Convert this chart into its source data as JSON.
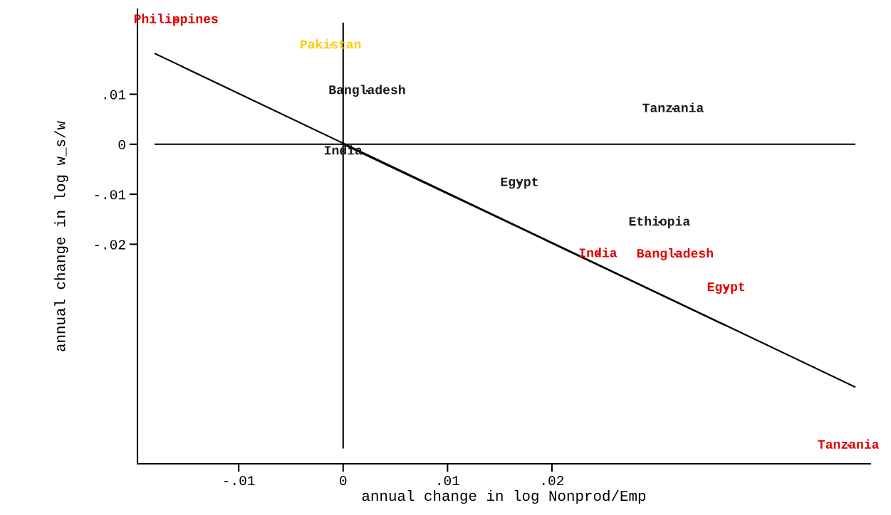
{
  "chart_data": {
    "type": "scatter",
    "xlabel": "annual change in log Nonprod/Emp",
    "ylabel": "annual change in log w_s/w",
    "xlim": [
      -0.0197,
      0.0505
    ],
    "ylim": [
      -0.0639,
      0.027
    ],
    "xticks": [
      {
        "value": -0.01,
        "label": "-.01"
      },
      0,
      {
        "value": 0.01,
        "label": ".01"
      },
      {
        "value": 0.02,
        "label": ".02"
      }
    ],
    "yticks": [
      {
        "value": 0.01,
        "label": ".01"
      },
      0,
      {
        "value": -0.01,
        "label": "-.01"
      },
      {
        "value": -0.02,
        "label": "-.02"
      }
    ],
    "grid": false,
    "legend": false,
    "series": [
      {
        "marker": "circle",
        "color": "#1a1a1a",
        "x": [
          0.0023,
          0.0316,
          0.0,
          0.0169,
          0.0303
        ],
        "values": [
          0.0107,
          0.0071,
          -0.0014,
          -0.0077,
          -0.0156
        ],
        "value_labels": [
          "Bangladesh",
          "Tanzania",
          "India",
          "Egypt",
          "Ethiopia"
        ]
      },
      {
        "marker": "circle",
        "color": "#e00000",
        "x": [
          -0.016,
          0.0244,
          0.0318,
          0.0367,
          0.0484
        ],
        "values": [
          0.0249,
          -0.0219,
          -0.022,
          -0.0287,
          -0.0602
        ],
        "value_labels": [
          "Philippines",
          "India",
          "Bangladesh",
          "Egypt",
          "Tanzania"
        ]
      },
      {
        "marker": "circle",
        "color": "#ffcc00",
        "x": [
          -0.0012
        ],
        "values": [
          0.0198
        ],
        "value_labels": [
          "Pakistan"
        ]
      },
      {
        "type": "line",
        "color": "#000000",
        "x": [
          -0.018,
          0.049
        ],
        "values": [
          0.0181,
          -0.0485
        ]
      },
      {
        "type": "line",
        "color": "#000000",
        "x": [
          0.0,
          0.0365
        ],
        "values": [
          0.0,
          -0.0361
        ]
      },
      {
        "type": "line",
        "color": "#000000",
        "x": [
          -0.018,
          0.049
        ],
        "values": [
          0.0,
          0.0
        ]
      },
      {
        "type": "line",
        "color": "#000000",
        "x": [
          0.0,
          0.0
        ],
        "values": [
          -0.0607,
          0.0242
        ]
      }
    ]
  }
}
